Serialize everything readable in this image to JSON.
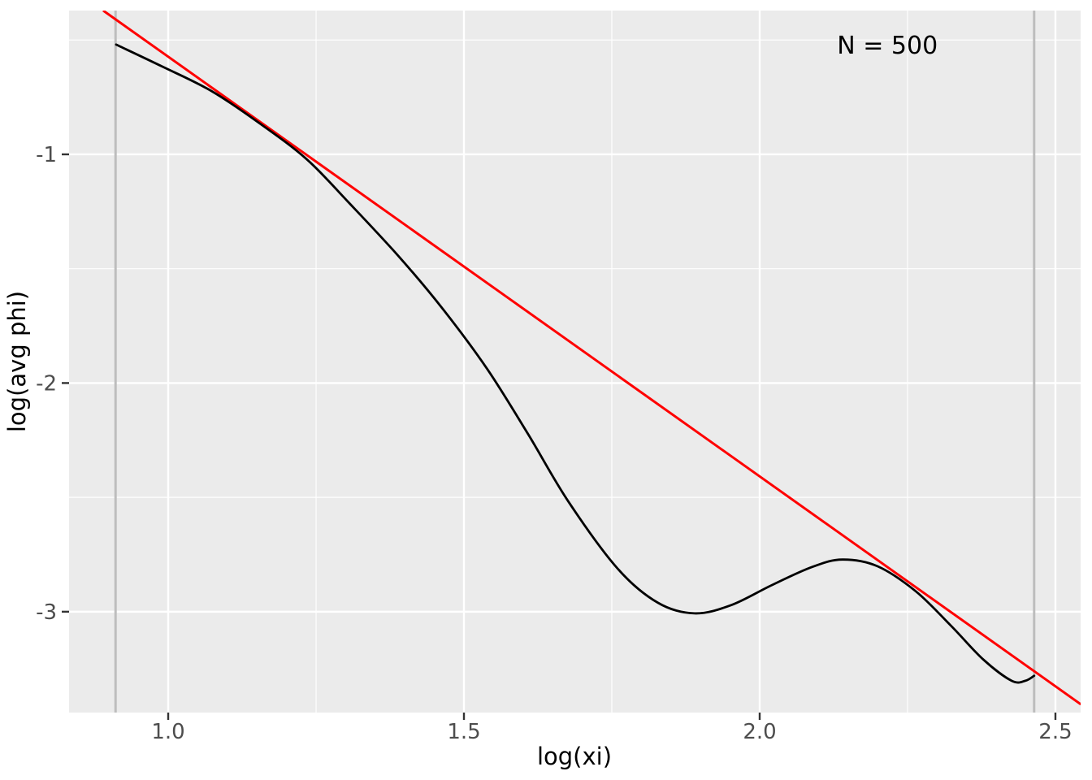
{
  "chart_data": {
    "type": "line",
    "title": "",
    "xlabel": "log(xi)",
    "ylabel": "log(avg phi)",
    "annotation": {
      "text": "N = 500",
      "x": 2.216,
      "y": -0.52
    },
    "xlim": [
      0.8324,
      2.5426
    ],
    "ylim": [
      -3.441,
      -0.3712
    ],
    "grid": true,
    "legend": "none",
    "panel_bg": "#EBEBEB",
    "grid_color": "#FFFFFF",
    "tick_color": "#333333",
    "tick_label_color": "#4D4D4D",
    "x_ticks": {
      "values": [
        1.0,
        1.5,
        2.0,
        2.5
      ],
      "labels": [
        "1.0",
        "1.5",
        "2.0",
        "2.5"
      ]
    },
    "y_ticks": {
      "values": [
        -1,
        -2,
        -3
      ],
      "labels": [
        "-1",
        "-2",
        "-3"
      ]
    },
    "x_minor": [
      1.25,
      1.75,
      2.25
    ],
    "y_minor": [
      -0.5,
      -1.5,
      -2.5
    ],
    "vlines": [
      {
        "x": 0.911,
        "color": "#BDBDBD",
        "width": 3
      },
      {
        "x": 2.464,
        "color": "#BDBDBD",
        "width": 3
      }
    ],
    "series": [
      {
        "name": "avg-phi-curve",
        "kind": "smooth",
        "color": "#000000",
        "width": 2.8,
        "points": [
          [
            0.912,
            -0.52
          ],
          [
            0.99,
            -0.616
          ],
          [
            1.073,
            -0.723
          ],
          [
            1.155,
            -0.865
          ],
          [
            1.234,
            -1.021
          ],
          [
            1.306,
            -1.213
          ],
          [
            1.389,
            -1.444
          ],
          [
            1.464,
            -1.675
          ],
          [
            1.54,
            -1.941
          ],
          [
            1.609,
            -2.226
          ],
          [
            1.677,
            -2.52
          ],
          [
            1.76,
            -2.812
          ],
          [
            1.828,
            -2.961
          ],
          [
            1.89,
            -3.007
          ],
          [
            1.952,
            -2.971
          ],
          [
            2.021,
            -2.883
          ],
          [
            2.089,
            -2.804
          ],
          [
            2.14,
            -2.772
          ],
          [
            2.199,
            -2.801
          ],
          [
            2.264,
            -2.911
          ],
          [
            2.323,
            -3.06
          ],
          [
            2.378,
            -3.209
          ],
          [
            2.426,
            -3.302
          ],
          [
            2.449,
            -3.302
          ],
          [
            2.464,
            -3.28
          ]
        ]
      },
      {
        "name": "power-law-fit-line",
        "kind": "straight",
        "color": "#FF0000",
        "width": 3,
        "points": [
          [
            0.89,
            -0.371
          ],
          [
            2.543,
            -3.405
          ]
        ]
      }
    ]
  }
}
